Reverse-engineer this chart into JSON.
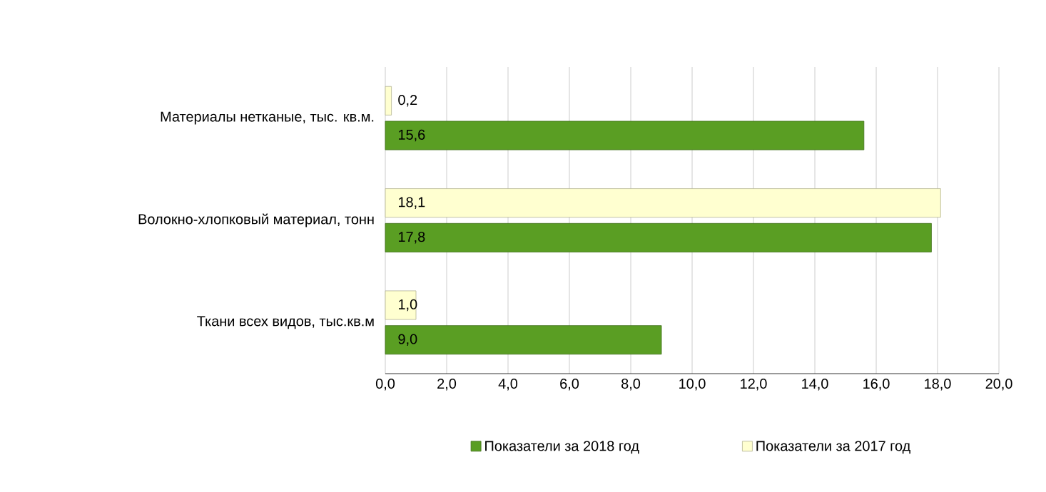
{
  "chart_data": {
    "type": "bar",
    "orientation": "horizontal",
    "categories": [
      "Материалы нетканые, тыс. кв.м.",
      "Волокно-хлопковый материал, тонн",
      "Ткани всех видов, тыс.кв.м"
    ],
    "series": [
      {
        "name": "Показатели за 2018 год",
        "color": "#5a9e23",
        "values": [
          15.6,
          17.8,
          9.0
        ],
        "value_labels": [
          "15,6",
          "17,8",
          "9,0"
        ]
      },
      {
        "name": "Показатели за 2017 год",
        "color": "#ffffd0",
        "values": [
          0.2,
          18.1,
          1.0
        ],
        "value_labels": [
          "0,2",
          "18,1",
          "1,0"
        ]
      }
    ],
    "xlim": [
      0,
      20
    ],
    "xticks": [
      {
        "value": 0,
        "label": "0,0"
      },
      {
        "value": 2,
        "label": "2,0"
      },
      {
        "value": 4,
        "label": "4,0"
      },
      {
        "value": 6,
        "label": "6,0"
      },
      {
        "value": 8,
        "label": "8,0"
      },
      {
        "value": 10,
        "label": "10,0"
      },
      {
        "value": 12,
        "label": "12,0"
      },
      {
        "value": 14,
        "label": "14,0"
      },
      {
        "value": 16,
        "label": "16,0"
      },
      {
        "value": 18,
        "label": "18,0"
      },
      {
        "value": 20,
        "label": "20,0"
      }
    ],
    "grid": "x",
    "legend": "bottom"
  }
}
